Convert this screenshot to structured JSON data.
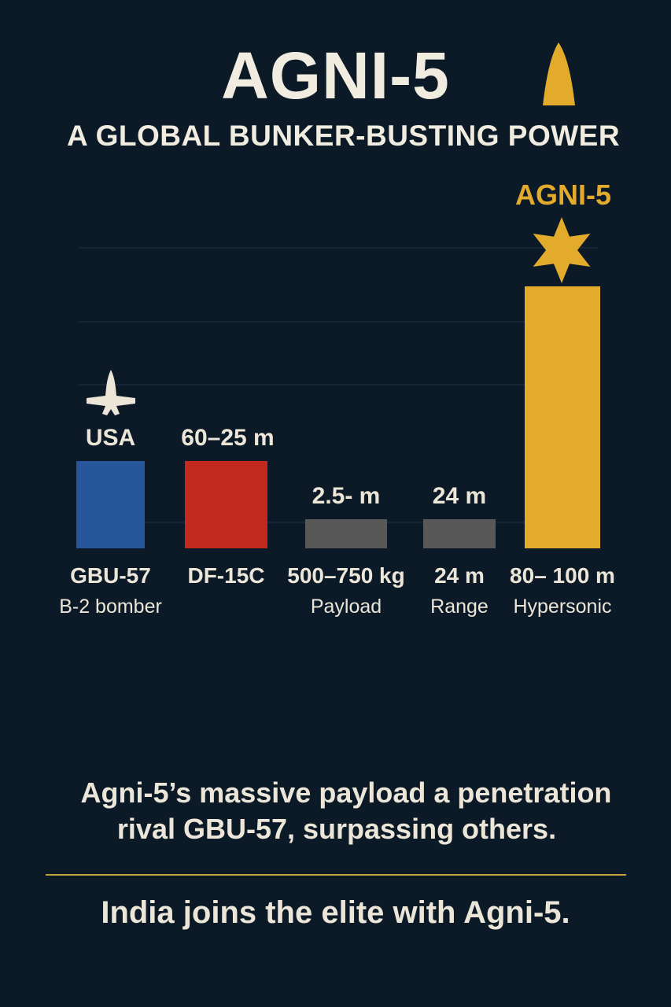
{
  "chart_data": {
    "type": "bar",
    "title": "AGNI-5",
    "subtitle": "A GLOBAL BUNKER-BUSTING POWER",
    "ylim": [
      0,
      100
    ],
    "grid": true,
    "highlight_label": "AGNI-5",
    "bars": [
      {
        "label": "GBU-57",
        "sublabel": "B-2 bomber",
        "top_label": "USA",
        "value": 30,
        "color": "#27579a",
        "icon": "aircraft-icon"
      },
      {
        "label": "DF-15C",
        "sublabel": "",
        "top_label": "60–25 m",
        "value": 30,
        "color": "#c22a20",
        "icon": ""
      },
      {
        "label": "500–750 kg",
        "sublabel": "Payload",
        "top_label": "2.5- m",
        "value": 10,
        "color": "#585858",
        "icon": ""
      },
      {
        "label": "24 m",
        "sublabel": "Range",
        "top_label": "24 m",
        "value": 10,
        "color": "#585858",
        "icon": ""
      },
      {
        "label": "80– 100 m",
        "sublabel": "Hypersonic",
        "top_label": "",
        "value": 90,
        "color": "#e2ab2c",
        "icon": "star-icon"
      }
    ],
    "colors": {
      "accent": "#e2ab2c",
      "background": "#0c1a28"
    }
  },
  "footer": {
    "note_line1": "Agni-5’s massive payload a penetration",
    "note_line2": "rival GBU-57, surpassing others.",
    "tagline": "India joins the elite with Agni-5."
  }
}
